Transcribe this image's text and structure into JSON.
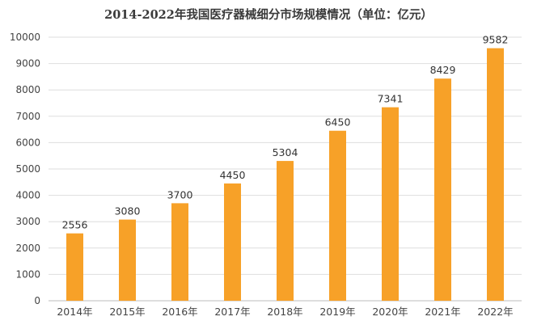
{
  "chart_data": {
    "type": "bar",
    "title": "2014-2022年我国医疗器械细分市场规模情况（单位：亿元）",
    "categories": [
      "2014年",
      "2015年",
      "2016年",
      "2017年",
      "2018年",
      "2019年",
      "2020年",
      "2021年",
      "2022年"
    ],
    "values": [
      2556,
      3080,
      3700,
      4450,
      5304,
      6450,
      7341,
      8429,
      9582
    ],
    "value_labels": [
      "2556",
      "3080",
      "3700",
      "4450",
      "5304",
      "6450",
      "7341",
      "8429",
      "9582"
    ],
    "xlabel": "",
    "ylabel": "",
    "ylim": [
      0,
      10000
    ],
    "yticks": [
      0,
      1000,
      2000,
      3000,
      4000,
      5000,
      6000,
      7000,
      8000,
      9000,
      10000
    ],
    "ytick_labels": [
      "0",
      "1000",
      "2000",
      "3000",
      "4000",
      "5000",
      "6000",
      "7000",
      "8000",
      "9000",
      "10000"
    ],
    "grid": true,
    "legend": "none",
    "colors": {
      "bar": "#F7A128",
      "grid": "#dedede",
      "axis": "#bdbdbd",
      "text": "#444444"
    }
  }
}
